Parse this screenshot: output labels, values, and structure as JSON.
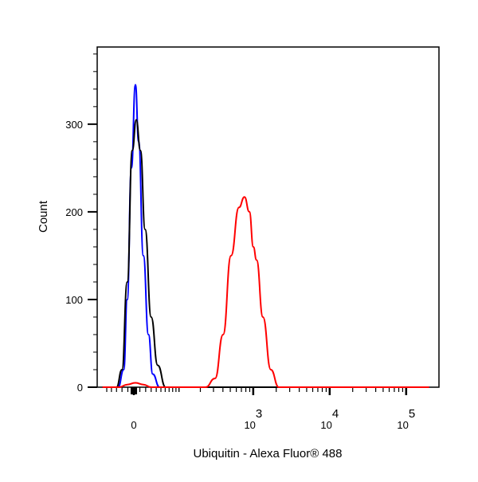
{
  "chart_data": {
    "type": "line",
    "title": "",
    "xlabel": "Ubiquitin - Alexa Fluor® 488",
    "ylabel": "Count",
    "x_scale": "biexponential",
    "xlim": [
      -60,
      200000
    ],
    "ylim": [
      0,
      388
    ],
    "x_ticks": [
      {
        "value": 0,
        "label": "0",
        "sup": ""
      },
      {
        "value": 1000,
        "label": "10",
        "sup": "3"
      },
      {
        "value": 10000,
        "label": "10",
        "sup": "4"
      },
      {
        "value": 100000,
        "label": "10",
        "sup": "5"
      }
    ],
    "y_ticks": [
      0,
      100,
      200,
      300
    ],
    "grid": false,
    "legend": "none",
    "series": [
      {
        "color": "#0000ff",
        "points": [
          [
            -60,
            0
          ],
          [
            -27,
            0
          ],
          [
            -17,
            20
          ],
          [
            -11,
            100
          ],
          [
            -4,
            250
          ],
          [
            2.6,
            345
          ],
          [
            8,
            280
          ],
          [
            16,
            150
          ],
          [
            25,
            60
          ],
          [
            33,
            15
          ],
          [
            47,
            0
          ],
          [
            200000,
            0
          ]
        ]
      },
      {
        "color": "#000000",
        "points": [
          [
            -60,
            0
          ],
          [
            -30,
            0
          ],
          [
            -20,
            20
          ],
          [
            -11,
            120
          ],
          [
            -2.6,
            270
          ],
          [
            4,
            305
          ],
          [
            11,
            270
          ],
          [
            19,
            180
          ],
          [
            30,
            80
          ],
          [
            43,
            25
          ],
          [
            61,
            0
          ],
          [
            200000,
            0
          ]
        ]
      },
      {
        "color": "#ff0000",
        "points": [
          [
            -60,
            0
          ],
          [
            -25,
            0
          ],
          [
            -11,
            3
          ],
          [
            2.6,
            5
          ],
          [
            16,
            3
          ],
          [
            30,
            0
          ],
          [
            235,
            0
          ],
          [
            315,
            10
          ],
          [
            402,
            60
          ],
          [
            512,
            150
          ],
          [
            650,
            205
          ],
          [
            768,
            217
          ],
          [
            890,
            200
          ],
          [
            1004,
            160
          ],
          [
            1105,
            145
          ],
          [
            1340,
            80
          ],
          [
            1700,
            20
          ],
          [
            2160,
            0
          ],
          [
            200000,
            0
          ]
        ]
      }
    ]
  }
}
